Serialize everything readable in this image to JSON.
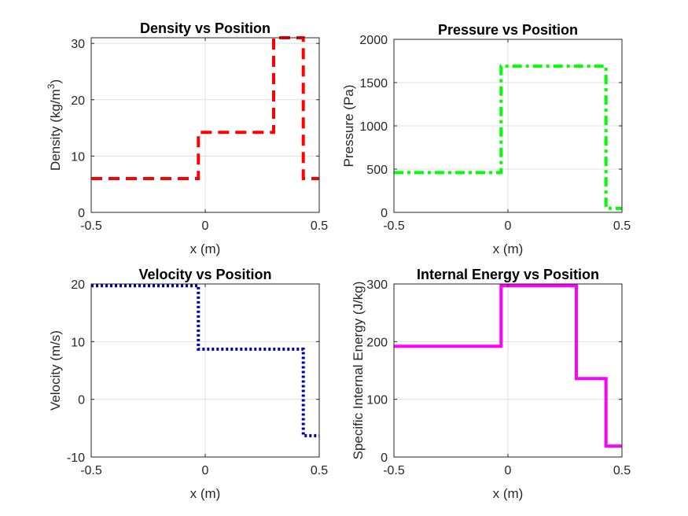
{
  "chart_data": [
    {
      "type": "line",
      "title": "Density vs Position",
      "xlabel": "x (m)",
      "ylabel": "Density (kg/m",
      "ylabel_sup": "3",
      "ylabel_tail": ")",
      "xlim": [
        -0.5,
        0.5
      ],
      "ylim": [
        0,
        31
      ],
      "xticks": [
        -0.5,
        0,
        0.5
      ],
      "xtick_labels": [
        "-0.5",
        "0",
        "0.5"
      ],
      "yticks": [
        0,
        10,
        20,
        30
      ],
      "ytick_labels": [
        "0",
        "10",
        "20",
        "30"
      ],
      "grid": true,
      "color": "#ff0000",
      "line_style": "dashed",
      "series": [
        {
          "x": [
            -0.5,
            -0.03,
            -0.03,
            0.3,
            0.3,
            0.43,
            0.43,
            0.5
          ],
          "y": [
            6,
            6,
            14.2,
            14.2,
            31,
            31,
            6,
            6
          ]
        }
      ]
    },
    {
      "type": "line",
      "title": "Pressure vs Position",
      "xlabel": "x (m)",
      "ylabel": "Pressure (Pa)",
      "xlim": [
        -0.5,
        0.5
      ],
      "ylim": [
        0,
        2000
      ],
      "xticks": [
        -0.5,
        0,
        0.5
      ],
      "xtick_labels": [
        "-0.5",
        "0",
        "0.5"
      ],
      "yticks": [
        0,
        500,
        1000,
        1500,
        2000
      ],
      "ytick_labels": [
        "0",
        "500",
        "1000",
        "1500",
        "2000"
      ],
      "grid": true,
      "color": "#00ff00",
      "line_style": "dash-dot",
      "series": [
        {
          "x": [
            -0.5,
            -0.03,
            -0.03,
            0.43,
            0.43,
            0.5
          ],
          "y": [
            460,
            460,
            1690,
            1690,
            46,
            46
          ]
        }
      ]
    },
    {
      "type": "line",
      "title": "Velocity vs Position",
      "xlabel": "x (m)",
      "ylabel": "Velocity (m/s)",
      "xlim": [
        -0.5,
        0.5
      ],
      "ylim": [
        -10,
        20
      ],
      "xticks": [
        -0.5,
        0,
        0.5
      ],
      "xtick_labels": [
        "-0.5",
        "0",
        "0.5"
      ],
      "yticks": [
        -10,
        0,
        10,
        20
      ],
      "ytick_labels": [
        "-10",
        "0",
        "10",
        "20"
      ],
      "grid": true,
      "color": "#0000aa",
      "line_style": "dotted",
      "series": [
        {
          "x": [
            -0.5,
            -0.03,
            -0.03,
            0.43,
            0.43,
            0.5
          ],
          "y": [
            19.7,
            19.7,
            8.7,
            8.7,
            -6.3,
            -6.3
          ]
        }
      ]
    },
    {
      "type": "line",
      "title": "Internal Energy vs Position",
      "xlabel": "x (m)",
      "ylabel": "Specific Internal Energy (J/kg)",
      "xlim": [
        -0.5,
        0.5
      ],
      "ylim": [
        0,
        300
      ],
      "xticks": [
        -0.5,
        0,
        0.5
      ],
      "xtick_labels": [
        "-0.5",
        "0",
        "0.5"
      ],
      "yticks": [
        0,
        100,
        200,
        300
      ],
      "ytick_labels": [
        "0",
        "100",
        "200",
        "300"
      ],
      "grid": true,
      "color": "#ff00ff",
      "line_style": "solid",
      "series": [
        {
          "x": [
            -0.5,
            -0.03,
            -0.03,
            0.3,
            0.3,
            0.43,
            0.43,
            0.5
          ],
          "y": [
            192,
            192,
            297,
            297,
            136,
            136,
            19,
            19
          ]
        }
      ]
    }
  ]
}
